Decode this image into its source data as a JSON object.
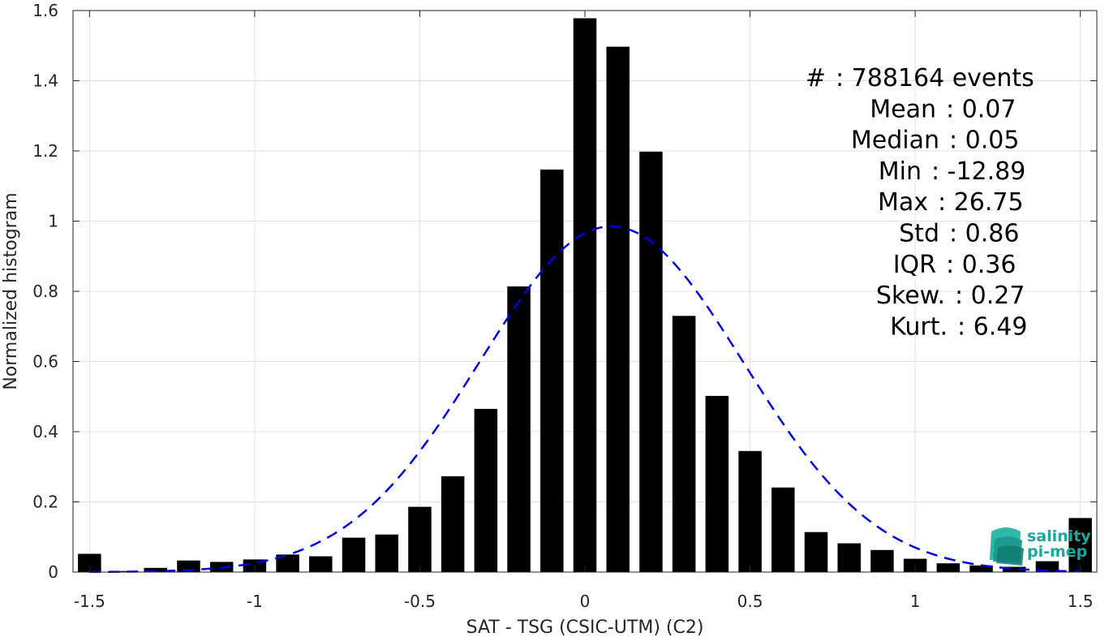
{
  "chart_data": {
    "type": "bar",
    "xlabel": "SAT - TSG (CSIC-UTM) (C2)",
    "ylabel": "Normalized histogram",
    "xlim": [
      -1.55,
      1.55
    ],
    "ylim": [
      0,
      1.6
    ],
    "x_ticks": [
      -1.5,
      -1,
      -0.5,
      0,
      0.5,
      1,
      1.5
    ],
    "x_tick_labels": [
      "-1.5",
      "-1",
      "-0.5",
      "0",
      "0.5",
      "1",
      "1.5"
    ],
    "y_ticks": [
      0,
      0.2,
      0.4,
      0.6,
      0.8,
      1,
      1.2,
      1.4,
      1.6
    ],
    "y_tick_labels": [
      "0",
      "0.2",
      "0.4",
      "0.6",
      "0.8",
      "1",
      "1.2",
      "1.4",
      "1.6"
    ],
    "grid": true,
    "bar_color": "#000000",
    "bar_width": 0.07,
    "bins": [
      -1.5,
      -1.4,
      -1.3,
      -1.2,
      -1.1,
      -1.0,
      -0.9,
      -0.8,
      -0.7,
      -0.6,
      -0.5,
      -0.4,
      -0.3,
      -0.2,
      -0.1,
      0.0,
      0.1,
      0.2,
      0.3,
      0.4,
      0.5,
      0.6,
      0.7,
      0.8,
      0.9,
      1.0,
      1.1,
      1.2,
      1.3,
      1.4,
      1.5
    ],
    "values": [
      0.052,
      0.003,
      0.012,
      0.033,
      0.029,
      0.036,
      0.05,
      0.045,
      0.098,
      0.107,
      0.186,
      0.273,
      0.465,
      0.814,
      1.147,
      1.578,
      1.497,
      1.198,
      0.73,
      0.502,
      0.345,
      0.241,
      0.114,
      0.082,
      0.063,
      0.038,
      0.025,
      0.019,
      0.015,
      0.031,
      0.154
    ],
    "fit": {
      "type": "gaussian",
      "color": "#0000dd",
      "style": "dashed",
      "mean": 0.08,
      "peak": 0.985,
      "sigma": 0.4,
      "x_range": [
        -1.5,
        1.5
      ]
    },
    "stats": [
      {
        "label": "#",
        "value": ": 788164 events"
      },
      {
        "label": "Mean",
        "value": ": 0.07"
      },
      {
        "label": "Median",
        "value": ": 0.05"
      },
      {
        "label": "Min",
        "value": ": -12.89"
      },
      {
        "label": "Max",
        "value": ": 26.75"
      },
      {
        "label": "Std",
        "value": ": 0.86"
      },
      {
        "label": "IQR",
        "value": ": 0.36"
      },
      {
        "label": "Skew.",
        "value": ": 0.27"
      },
      {
        "label": "Kurt.",
        "value": ": 6.49"
      }
    ]
  },
  "logo": {
    "line1": "salinity",
    "line2": "pi-mep",
    "color": "#1aa89a"
  }
}
